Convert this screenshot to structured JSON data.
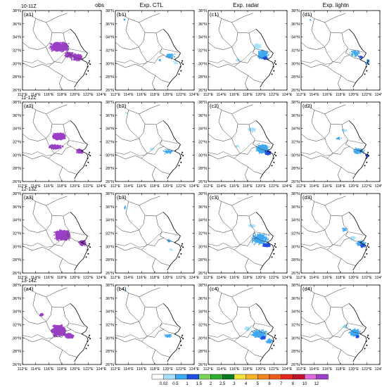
{
  "column_titles": [
    "obs",
    "Exp. CTL",
    "Exp. radar",
    "Exp. lightn"
  ],
  "row_times": [
    "10-11Z",
    "11-12Z",
    "12-13Z",
    "13-14Z"
  ],
  "panel_labels": [
    [
      "(a1)",
      "(b1)",
      "(c1)",
      "(d1)"
    ],
    [
      "(a2)",
      "(b2)",
      "(c2)",
      "(d2)"
    ],
    [
      "(a3)",
      "(b3)",
      "(c3)",
      "(d3)"
    ],
    [
      "(a4)",
      "(b4)",
      "(c4)",
      "(d4)"
    ]
  ],
  "lat_ticks": [
    "26°N",
    "28°N",
    "30°N",
    "32°N",
    "34°N",
    "36°N",
    "38°N"
  ],
  "lon_ticks": [
    "112°E",
    "114°E",
    "116°E",
    "118°E",
    "120°E",
    "122°E",
    "124°E"
  ],
  "extent": {
    "lon": [
      112,
      124
    ],
    "lat": [
      26,
      38
    ]
  },
  "colorbar": {
    "levels": [
      "0.02",
      "0.5",
      "1",
      "1.5",
      "2",
      "2.5",
      "3",
      "4",
      "5",
      "6",
      "7",
      "8",
      "10",
      "12"
    ],
    "colors": [
      "#ffffff",
      "#a6e1fa",
      "#3fa8f0",
      "#1f4fe0",
      "#7bd45a",
      "#2fae2f",
      "#0b7a1f",
      "#f2e436",
      "#f5b52a",
      "#f2851f",
      "#ee5a1c",
      "#e0261e",
      "#c0122a",
      "#e06ad8",
      "#9a3fc6"
    ]
  },
  "colors": {
    "obs": "#9a3fc6",
    "light": "#a6e1fa",
    "mid": "#3fa8f0",
    "dark": "#1f4fe0",
    "coast": "#000000",
    "boundary": "#333333"
  }
}
